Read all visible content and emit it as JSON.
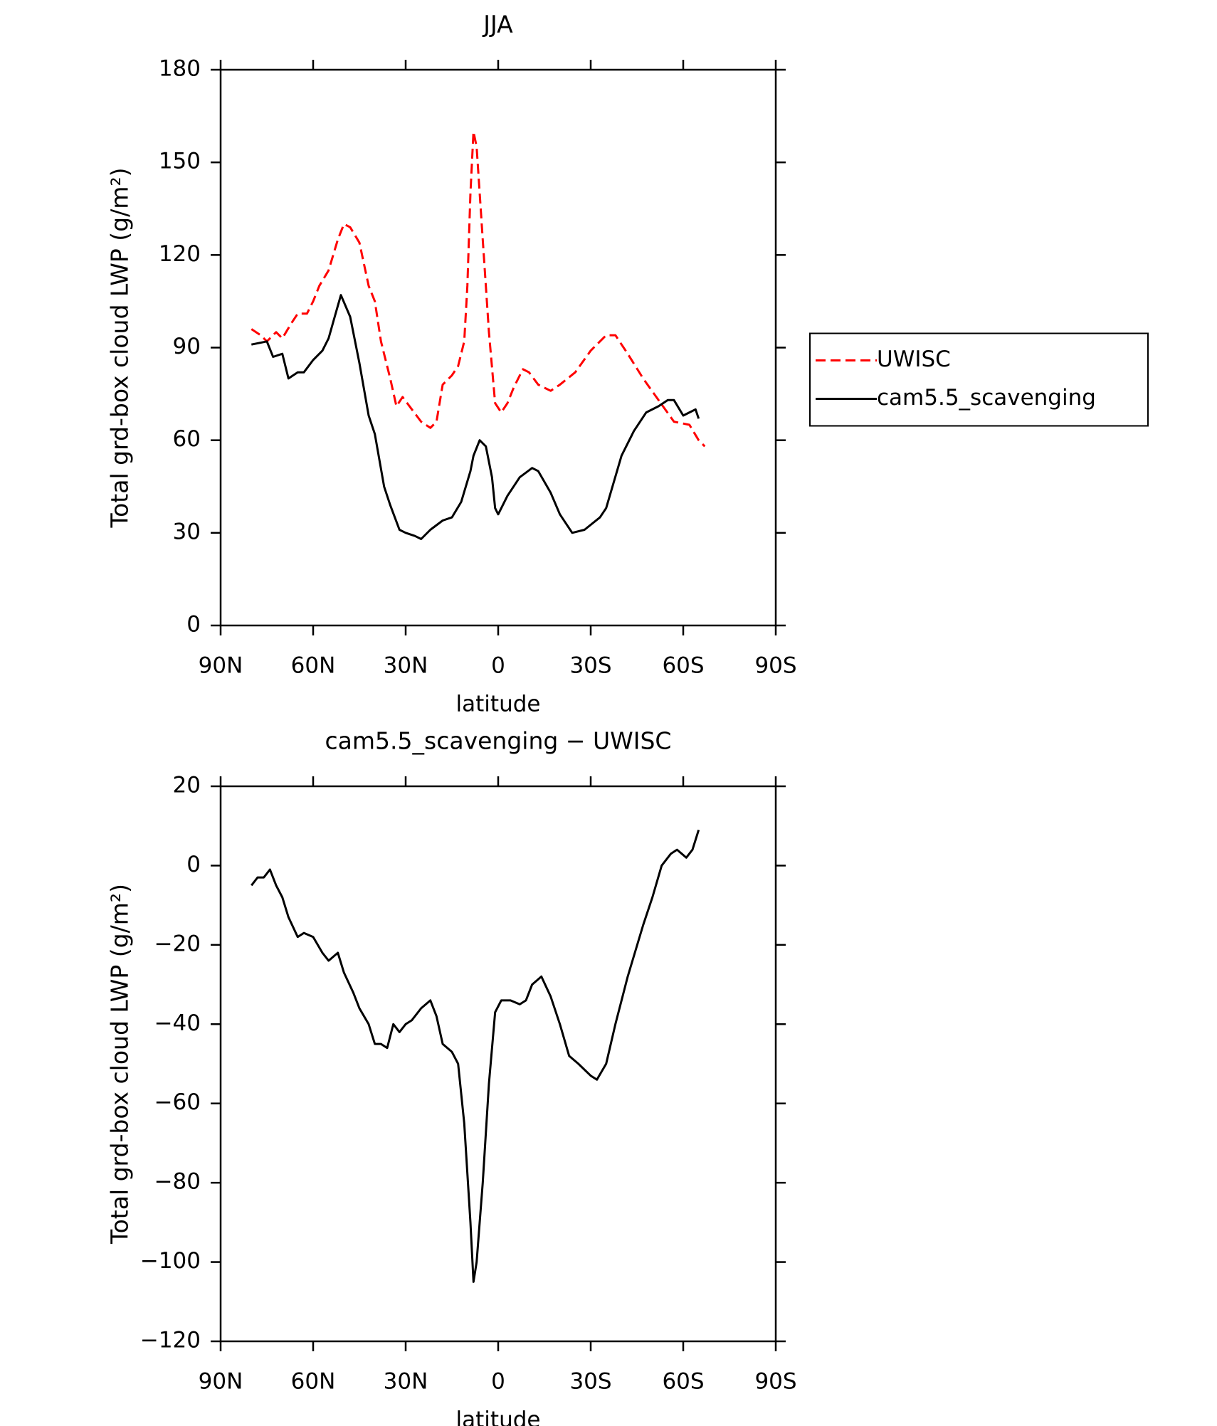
{
  "chart_data": [
    {
      "type": "line",
      "title": "JJA",
      "x_label": "latitude",
      "y_label": "Total grd-box cloud LWP (g/m²)",
      "xlim": [
        90,
        -90
      ],
      "xticks": [
        {
          "value": 90,
          "label": "90N"
        },
        {
          "value": 60,
          "label": "60N"
        },
        {
          "value": 30,
          "label": "30N"
        },
        0,
        {
          "value": -30,
          "label": "30S"
        },
        {
          "value": -60,
          "label": "60S"
        },
        {
          "value": -90,
          "label": "90S"
        }
      ],
      "ylim": [
        0,
        180
      ],
      "yticks": [
        0,
        30,
        60,
        90,
        120,
        150,
        180
      ],
      "legend": "right",
      "series": [
        {
          "name": "UWISC",
          "color": "#ff0000",
          "dash": true,
          "x": [
            80,
            77,
            75,
            72,
            70,
            67,
            65,
            62,
            60,
            58,
            55,
            52,
            50,
            48,
            45,
            42,
            40,
            38,
            35,
            33,
            31,
            28,
            25,
            22,
            20,
            18,
            15,
            13,
            11,
            10,
            9,
            8,
            7,
            5,
            3,
            1,
            -1,
            -3,
            -5,
            -8,
            -10,
            -13,
            -17,
            -20,
            -25,
            -30,
            -35,
            -38,
            -42,
            -47,
            -52,
            -57,
            -62,
            -65,
            -67
          ],
          "values": [
            96,
            94,
            92,
            95,
            93,
            98,
            101,
            101,
            105,
            110,
            115,
            125,
            130,
            129,
            124,
            110,
            105,
            92,
            80,
            71,
            74,
            70,
            66,
            64,
            66,
            78,
            81,
            84,
            92,
            110,
            140,
            160,
            155,
            125,
            95,
            72,
            69,
            72,
            77,
            83,
            82,
            78,
            76,
            78,
            82,
            89,
            94,
            94,
            88,
            80,
            73,
            66,
            65,
            60,
            58
          ]
        },
        {
          "name": "cam5.5_scavenging",
          "color": "#000000",
          "dash": false,
          "x": [
            80,
            75,
            73,
            70,
            68,
            65,
            63,
            60,
            57,
            55,
            53,
            51,
            48,
            45,
            42,
            40,
            37,
            35,
            32,
            30,
            27,
            25,
            22,
            18,
            15,
            12,
            9,
            8,
            6,
            4,
            2,
            1,
            0,
            -3,
            -7,
            -11,
            -13,
            -17,
            -20,
            -24,
            -28,
            -33,
            -35,
            -40,
            -44,
            -48,
            -52,
            -55,
            -57,
            -60,
            -62,
            -64,
            -65
          ],
          "values": [
            91,
            92,
            87,
            88,
            80,
            82,
            82,
            86,
            89,
            93,
            100,
            107,
            100,
            85,
            68,
            62,
            45,
            39,
            31,
            30,
            29,
            28,
            31,
            34,
            35,
            40,
            50,
            55,
            60,
            58,
            48,
            38,
            36,
            42,
            48,
            51,
            50,
            43,
            36,
            30,
            31,
            35,
            38,
            55,
            63,
            69,
            71,
            73,
            73,
            68,
            69,
            70,
            67
          ]
        }
      ]
    },
    {
      "type": "line",
      "title": "cam5.5_scavenging − UWISC",
      "x_label": "latitude",
      "y_label": "Total grd-box cloud LWP (g/m²)",
      "xlim": [
        90,
        -90
      ],
      "xticks": [
        {
          "value": 90,
          "label": "90N"
        },
        {
          "value": 60,
          "label": "60N"
        },
        {
          "value": 30,
          "label": "30N"
        },
        0,
        {
          "value": -30,
          "label": "30S"
        },
        {
          "value": -60,
          "label": "60S"
        },
        {
          "value": -90,
          "label": "90S"
        }
      ],
      "ylim": [
        -120,
        20
      ],
      "yticks": [
        {
          "value": -120,
          "label": "−120"
        },
        {
          "value": -100,
          "label": "−100"
        },
        {
          "value": -80,
          "label": "−80"
        },
        {
          "value": -60,
          "label": "−60"
        },
        {
          "value": -40,
          "label": "−40"
        },
        {
          "value": -20,
          "label": "−20"
        },
        0,
        20
      ],
      "series": [
        {
          "color": "#000000",
          "dash": false,
          "x": [
            80,
            78,
            76,
            74,
            72,
            70,
            68,
            65,
            63,
            60,
            57,
            55,
            52,
            50,
            47,
            45,
            42,
            40,
            38,
            36,
            34,
            32,
            30,
            28,
            25,
            22,
            20,
            18,
            15,
            13,
            11,
            9,
            8,
            7,
            5,
            3,
            1,
            -1,
            -4,
            -7,
            -9,
            -11,
            -14,
            -17,
            -20,
            -23,
            -26,
            -30,
            -32,
            -35,
            -38,
            -42,
            -47,
            -50,
            -53,
            -56,
            -58,
            -61,
            -63,
            -65
          ],
          "values": [
            -5,
            -3,
            -3,
            -1,
            -5,
            -8,
            -13,
            -18,
            -17,
            -18,
            -22,
            -24,
            -22,
            -27,
            -32,
            -36,
            -40,
            -45,
            -45,
            -46,
            -40,
            -42,
            -40,
            -39,
            -36,
            -34,
            -38,
            -45,
            -47,
            -50,
            -65,
            -90,
            -105,
            -100,
            -80,
            -55,
            -37,
            -34,
            -34,
            -35,
            -34,
            -30,
            -28,
            -33,
            -40,
            -48,
            -50,
            -53,
            -54,
            -50,
            -40,
            -28,
            -15,
            -8,
            0,
            3,
            4,
            2,
            4,
            9
          ]
        }
      ]
    }
  ]
}
